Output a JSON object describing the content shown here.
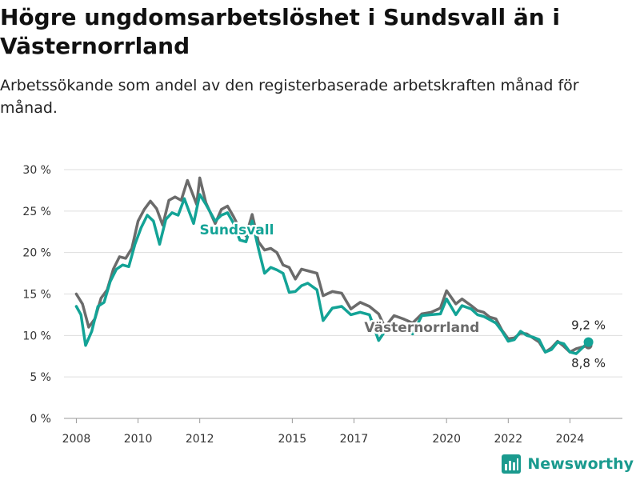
{
  "header": {
    "title": "Högre ungdomsarbetslöshet i Sundsvall än i Västernorrland",
    "subtitle": "Arbetssökande som andel av den registerbaserade arbetskraften månad för månad."
  },
  "brand": {
    "name": "Newsworthy"
  },
  "colors": {
    "sundsvall": "#13a396",
    "vasternorrland": "#6b6b6b",
    "grid": "#dddddd"
  },
  "chart_data": {
    "type": "line",
    "ylabel": "",
    "xlabel": "",
    "ylim": [
      0,
      30
    ],
    "yticks": [
      0,
      5,
      10,
      15,
      20,
      25,
      30
    ],
    "ytick_labels": [
      "0 %",
      "5 %",
      "10 %",
      "15 %",
      "20 %",
      "25 %",
      "30 %"
    ],
    "xlim": [
      2007.6,
      2025.7
    ],
    "xticks": [
      2008,
      2010,
      2012,
      2015,
      2017,
      2020,
      2022,
      2024
    ],
    "xtick_labels": [
      "2008",
      "2010",
      "2012",
      "2015",
      "2017",
      "2020",
      "2022",
      "2024"
    ],
    "grid": true,
    "series": [
      {
        "name": "Västernorrland",
        "color": "#6b6b6b",
        "end_label": "8,8 %",
        "points": [
          [
            2008.0,
            15.0
          ],
          [
            2008.2,
            13.8
          ],
          [
            2008.4,
            11.0
          ],
          [
            2008.6,
            12.0
          ],
          [
            2008.8,
            14.5
          ],
          [
            2009.0,
            15.5
          ],
          [
            2009.2,
            18.0
          ],
          [
            2009.4,
            19.5
          ],
          [
            2009.6,
            19.3
          ],
          [
            2009.8,
            20.5
          ],
          [
            2010.0,
            23.8
          ],
          [
            2010.2,
            25.2
          ],
          [
            2010.4,
            26.2
          ],
          [
            2010.6,
            25.3
          ],
          [
            2010.8,
            23.3
          ],
          [
            2011.0,
            26.3
          ],
          [
            2011.2,
            26.7
          ],
          [
            2011.4,
            26.3
          ],
          [
            2011.6,
            28.7
          ],
          [
            2011.9,
            25.8
          ],
          [
            2012.0,
            29.0
          ],
          [
            2012.2,
            26.0
          ],
          [
            2012.5,
            23.5
          ],
          [
            2012.7,
            25.2
          ],
          [
            2012.9,
            25.6
          ],
          [
            2013.1,
            24.3
          ],
          [
            2013.3,
            22.8
          ],
          [
            2013.5,
            22.0
          ],
          [
            2013.7,
            24.6
          ],
          [
            2013.9,
            21.3
          ],
          [
            2014.1,
            20.3
          ],
          [
            2014.3,
            20.5
          ],
          [
            2014.5,
            20.0
          ],
          [
            2014.7,
            18.5
          ],
          [
            2014.9,
            18.2
          ],
          [
            2015.1,
            16.8
          ],
          [
            2015.3,
            18.0
          ],
          [
            2015.5,
            17.8
          ],
          [
            2015.8,
            17.5
          ],
          [
            2016.0,
            14.8
          ],
          [
            2016.3,
            15.3
          ],
          [
            2016.6,
            15.1
          ],
          [
            2016.9,
            13.2
          ],
          [
            2017.2,
            14.0
          ],
          [
            2017.5,
            13.5
          ],
          [
            2017.8,
            12.6
          ],
          [
            2018.0,
            11.0
          ],
          [
            2018.3,
            12.4
          ],
          [
            2018.6,
            12.0
          ],
          [
            2018.9,
            11.5
          ],
          [
            2019.2,
            12.6
          ],
          [
            2019.5,
            12.8
          ],
          [
            2019.8,
            13.3
          ],
          [
            2020.0,
            15.4
          ],
          [
            2020.3,
            13.8
          ],
          [
            2020.5,
            14.4
          ],
          [
            2020.8,
            13.6
          ],
          [
            2021.0,
            13.0
          ],
          [
            2021.2,
            12.8
          ],
          [
            2021.4,
            12.2
          ],
          [
            2021.6,
            12.0
          ],
          [
            2021.8,
            10.6
          ],
          [
            2022.0,
            9.6
          ],
          [
            2022.2,
            9.7
          ],
          [
            2022.4,
            10.3
          ],
          [
            2022.6,
            10.2
          ],
          [
            2022.8,
            9.7
          ],
          [
            2023.0,
            9.2
          ],
          [
            2023.2,
            8.0
          ],
          [
            2023.4,
            8.5
          ],
          [
            2023.6,
            9.3
          ],
          [
            2023.8,
            8.7
          ],
          [
            2024.0,
            8.0
          ],
          [
            2024.2,
            8.4
          ],
          [
            2024.4,
            8.6
          ],
          [
            2024.6,
            8.8
          ]
        ]
      },
      {
        "name": "Sundsvall",
        "color": "#13a396",
        "end_label": "9,2 %",
        "points": [
          [
            2008.0,
            13.5
          ],
          [
            2008.15,
            12.5
          ],
          [
            2008.3,
            8.8
          ],
          [
            2008.5,
            10.5
          ],
          [
            2008.7,
            13.5
          ],
          [
            2008.9,
            14.0
          ],
          [
            2009.1,
            16.5
          ],
          [
            2009.3,
            18.0
          ],
          [
            2009.5,
            18.5
          ],
          [
            2009.7,
            18.3
          ],
          [
            2009.9,
            21.0
          ],
          [
            2010.1,
            23.0
          ],
          [
            2010.3,
            24.5
          ],
          [
            2010.5,
            23.8
          ],
          [
            2010.7,
            21.0
          ],
          [
            2010.9,
            24.0
          ],
          [
            2011.1,
            24.8
          ],
          [
            2011.3,
            24.5
          ],
          [
            2011.5,
            26.5
          ],
          [
            2011.8,
            23.5
          ],
          [
            2012.0,
            27.0
          ],
          [
            2012.2,
            25.8
          ],
          [
            2012.5,
            23.8
          ],
          [
            2012.7,
            24.5
          ],
          [
            2012.9,
            24.8
          ],
          [
            2013.1,
            23.5
          ],
          [
            2013.3,
            21.5
          ],
          [
            2013.5,
            21.3
          ],
          [
            2013.7,
            23.8
          ],
          [
            2013.9,
            20.5
          ],
          [
            2014.1,
            17.5
          ],
          [
            2014.3,
            18.2
          ],
          [
            2014.5,
            17.9
          ],
          [
            2014.7,
            17.5
          ],
          [
            2014.9,
            15.2
          ],
          [
            2015.1,
            15.3
          ],
          [
            2015.3,
            16.0
          ],
          [
            2015.5,
            16.3
          ],
          [
            2015.8,
            15.5
          ],
          [
            2016.0,
            11.8
          ],
          [
            2016.3,
            13.3
          ],
          [
            2016.6,
            13.5
          ],
          [
            2016.9,
            12.5
          ],
          [
            2017.2,
            12.8
          ],
          [
            2017.5,
            12.5
          ],
          [
            2017.8,
            9.4
          ],
          [
            2018.0,
            10.5
          ],
          [
            2018.3,
            11.5
          ],
          [
            2018.6,
            11.0
          ],
          [
            2018.9,
            10.2
          ],
          [
            2019.2,
            12.4
          ],
          [
            2019.5,
            12.5
          ],
          [
            2019.8,
            12.6
          ],
          [
            2020.0,
            14.4
          ],
          [
            2020.3,
            12.5
          ],
          [
            2020.5,
            13.6
          ],
          [
            2020.8,
            13.2
          ],
          [
            2021.0,
            12.5
          ],
          [
            2021.2,
            12.3
          ],
          [
            2021.4,
            11.9
          ],
          [
            2021.6,
            11.5
          ],
          [
            2021.8,
            10.5
          ],
          [
            2022.0,
            9.3
          ],
          [
            2022.2,
            9.5
          ],
          [
            2022.4,
            10.5
          ],
          [
            2022.6,
            10.0
          ],
          [
            2022.8,
            9.8
          ],
          [
            2023.0,
            9.5
          ],
          [
            2023.2,
            8.0
          ],
          [
            2023.4,
            8.3
          ],
          [
            2023.6,
            9.2
          ],
          [
            2023.8,
            9.0
          ],
          [
            2024.0,
            8.0
          ],
          [
            2024.2,
            7.8
          ],
          [
            2024.4,
            8.5
          ],
          [
            2024.6,
            9.2
          ]
        ]
      }
    ],
    "annotations": [
      {
        "text": "Sundsvall",
        "series": "Sundsvall"
      },
      {
        "text": "Västernorrland",
        "series": "Västernorrland"
      }
    ]
  }
}
